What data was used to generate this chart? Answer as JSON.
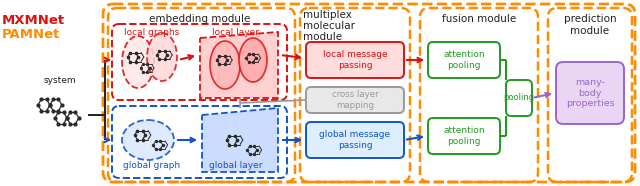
{
  "fig_width": 6.4,
  "fig_height": 1.86,
  "dpi": 100,
  "bg_color": "#ffffff",
  "colors": {
    "red": "#dd1111",
    "blue": "#1155cc",
    "green": "#229922",
    "gray": "#999999",
    "purple": "#9966cc",
    "orange": "#ff8c00",
    "black": "#222222",
    "lt_red_fill": "#ffdddd",
    "lt_blue_fill": "#ddeeff",
    "lt_gray_fill": "#e8e8e8",
    "lt_purple_fill": "#ead5f5",
    "mol_dark": "#333333",
    "mol_bond": "#555555"
  },
  "labels": {
    "mxmnet": "MXMNet",
    "pamnet": "PAMNet",
    "system": "system",
    "embedding": "embedding module",
    "local_graphs": "local graphs",
    "local_layer": "local layer",
    "global_graph": "global graph",
    "global_layer": "global layer",
    "multiplex1": "multiplex",
    "multiplex2": "molecular",
    "multiplex3": "module",
    "local_msg1": "local message",
    "local_msg2": "passing",
    "cross1": "cross layer",
    "cross2": "mapping",
    "global_msg1": "global message",
    "global_msg2": "passing",
    "fusion": "fusion module",
    "attn1": "attention\npooling",
    "attn2": "attention\npooling",
    "pooling": "pooling",
    "prediction": "prediction\nmodule",
    "manybody": "many-\nbody\nproperties"
  }
}
